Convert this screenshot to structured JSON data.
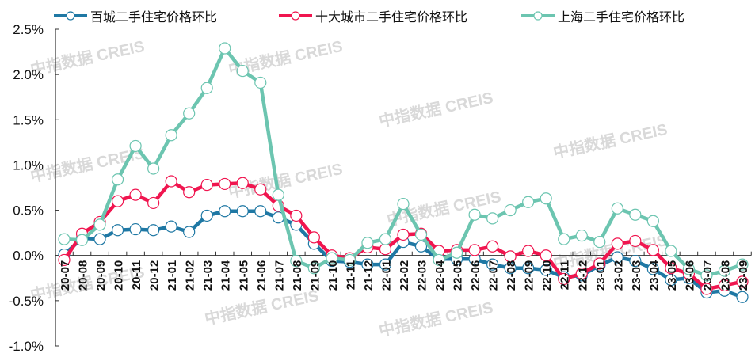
{
  "chart_data": {
    "type": "line",
    "title": "",
    "xlabel": "",
    "ylabel": "",
    "ylim": [
      -1.0,
      2.5
    ],
    "yticks": [
      "2.5%",
      "2.0%",
      "1.5%",
      "1.0%",
      "0.5%",
      "0.0%",
      "-0.5%",
      "-1.0%"
    ],
    "grid": false,
    "legend_position": "top",
    "watermark": "中指数据 CREIS",
    "categories": [
      "20-07",
      "20-08",
      "20-09",
      "20-10",
      "20-11",
      "20-12",
      "21-01",
      "21-02",
      "21-03",
      "21-04",
      "21-05",
      "21-06",
      "21-07",
      "21-08",
      "21-09",
      "21-10",
      "21-11",
      "21-12",
      "22-01",
      "22-02",
      "22-03",
      "22-04",
      "22-05",
      "22-06",
      "22-07",
      "22-08",
      "22-09",
      "22-10",
      "22-11",
      "22-12",
      "23-01",
      "23-02",
      "23-03",
      "23-04",
      "23-05",
      "23-06",
      "23-07",
      "23-08",
      "23-09"
    ],
    "series": [
      {
        "name": "百城二手住宅价格环比",
        "color": "#1f78a4",
        "values": [
          0.01,
          0.19,
          0.18,
          0.28,
          0.29,
          0.28,
          0.32,
          0.26,
          0.44,
          0.49,
          0.49,
          0.49,
          0.42,
          0.34,
          0.13,
          -0.06,
          -0.07,
          -0.1,
          -0.1,
          0.15,
          0.1,
          -0.04,
          -0.04,
          -0.04,
          -0.1,
          -0.14,
          -0.14,
          -0.16,
          -0.24,
          -0.22,
          -0.11,
          -0.02,
          -0.06,
          -0.15,
          -0.27,
          -0.25,
          -0.41,
          -0.39,
          -0.46
        ]
      },
      {
        "name": "十大城市二手住宅价格环比",
        "color": "#f0154f",
        "values": [
          -0.05,
          0.24,
          0.37,
          0.6,
          0.67,
          0.58,
          0.82,
          0.7,
          0.78,
          0.79,
          0.8,
          0.73,
          0.55,
          0.44,
          0.2,
          0.0,
          -0.03,
          0.09,
          0.07,
          0.23,
          0.24,
          0.05,
          0.06,
          0.06,
          0.1,
          -0.01,
          0.05,
          0.0,
          -0.26,
          -0.2,
          -0.09,
          0.13,
          0.16,
          0.06,
          -0.14,
          -0.2,
          -0.37,
          -0.33,
          -0.29
        ]
      },
      {
        "name": "上海二手住宅价格环比",
        "color": "#6cc5b0",
        "values": [
          0.18,
          0.17,
          0.34,
          0.84,
          1.21,
          0.96,
          1.33,
          1.57,
          1.85,
          2.29,
          2.04,
          1.91,
          0.67,
          -0.06,
          -0.14,
          -0.03,
          -0.05,
          0.14,
          0.18,
          0.57,
          0.23,
          -0.05,
          0.03,
          0.45,
          0.41,
          0.5,
          0.59,
          0.63,
          0.18,
          0.22,
          0.15,
          0.52,
          0.45,
          0.38,
          0.05,
          -0.15,
          -0.22,
          -0.17,
          -0.1
        ]
      }
    ]
  },
  "legend": {
    "items": [
      {
        "label": "百城二手住宅价格环比",
        "color": "#1f78a4"
      },
      {
        "label": "十大城市二手住宅价格环比",
        "color": "#f0154f"
      },
      {
        "label": "上海二手住宅价格环比",
        "color": "#6cc5b0"
      }
    ]
  }
}
